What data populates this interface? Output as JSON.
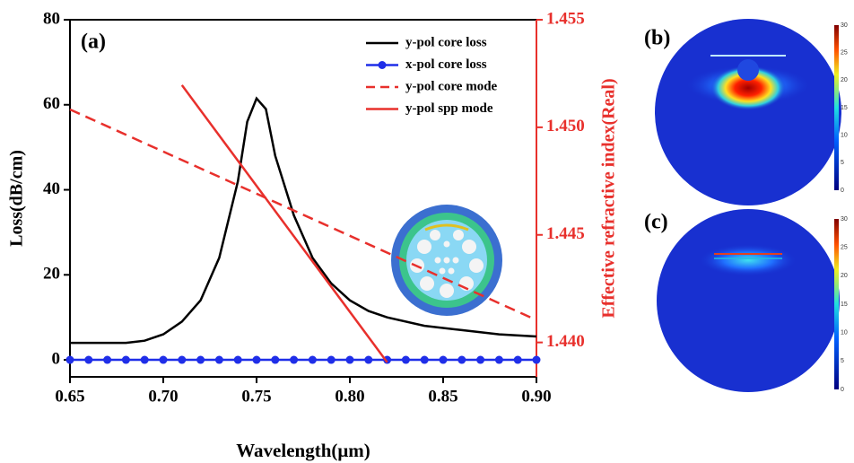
{
  "chart_data": {
    "type": "line",
    "annotation": "(a)",
    "xlabel": "Wavelength(μm)",
    "ylabel": "Loss(dB/cm)",
    "y2label": "Effective refractive index(Real)",
    "xlim": [
      0.65,
      0.9
    ],
    "ylim": [
      -4,
      80
    ],
    "y2lim": [
      1.4384,
      1.455
    ],
    "xticks": [
      0.65,
      {
        "value": 0.7,
        "label": "0.70"
      },
      0.75,
      {
        "value": 0.8,
        "label": "0.80"
      },
      0.85,
      {
        "value": 0.9,
        "label": "0.90"
      }
    ],
    "yticks": [
      0,
      20,
      40,
      60,
      80
    ],
    "y2ticks": [
      {
        "value": 1.44,
        "label": "1.440"
      },
      1.445,
      {
        "value": 1.45,
        "label": "1.450"
      },
      1.455
    ],
    "y2color": "#e8302c",
    "legend": "upper right",
    "series": [
      {
        "name": "y-pol core loss",
        "color": "#000000",
        "x": [
          0.65,
          0.68,
          0.69,
          0.7,
          0.71,
          0.72,
          0.73,
          0.74,
          0.745,
          0.75,
          0.755,
          0.76,
          0.77,
          0.78,
          0.79,
          0.8,
          0.81,
          0.82,
          0.84,
          0.86,
          0.88,
          0.9
        ],
        "values": [
          4,
          4,
          4.5,
          6,
          9,
          14,
          24,
          42,
          56,
          61.5,
          59,
          48,
          34,
          24,
          18,
          14,
          11.5,
          10,
          8,
          7,
          6,
          5.5
        ]
      },
      {
        "name": "x-pol core loss",
        "color": "#1f2ee8",
        "marker": "circle",
        "x": [
          0.65,
          0.66,
          0.67,
          0.68,
          0.69,
          0.7,
          0.71,
          0.72,
          0.73,
          0.74,
          0.75,
          0.76,
          0.77,
          0.78,
          0.79,
          0.8,
          0.81,
          0.82,
          0.83,
          0.84,
          0.85,
          0.86,
          0.87,
          0.88,
          0.89,
          0.9
        ],
        "values": [
          0,
          0,
          0,
          0,
          0,
          0,
          0,
          0,
          0,
          0,
          0,
          0,
          0,
          0,
          0,
          0,
          0,
          0,
          0,
          0,
          0,
          0,
          0,
          0,
          0,
          0
        ]
      },
      {
        "name": "y-pol core mode",
        "color": "#e8302c",
        "dash": true,
        "axis": "y2",
        "x": [
          0.65,
          0.9
        ],
        "values": [
          1.45083,
          1.44104
        ]
      },
      {
        "name": "y-pol spp mode",
        "color": "#e8302c",
        "axis": "y2",
        "x": [
          0.71,
          0.82
        ],
        "values": [
          1.45196,
          1.43908
        ]
      }
    ]
  },
  "panels": [
    {
      "label": "(b)",
      "colorbar_ticks": [
        0,
        5,
        10,
        15,
        20,
        25,
        30
      ]
    },
    {
      "label": "(c)",
      "colorbar_ticks": [
        0,
        5,
        10,
        15,
        20,
        25,
        30
      ]
    }
  ]
}
